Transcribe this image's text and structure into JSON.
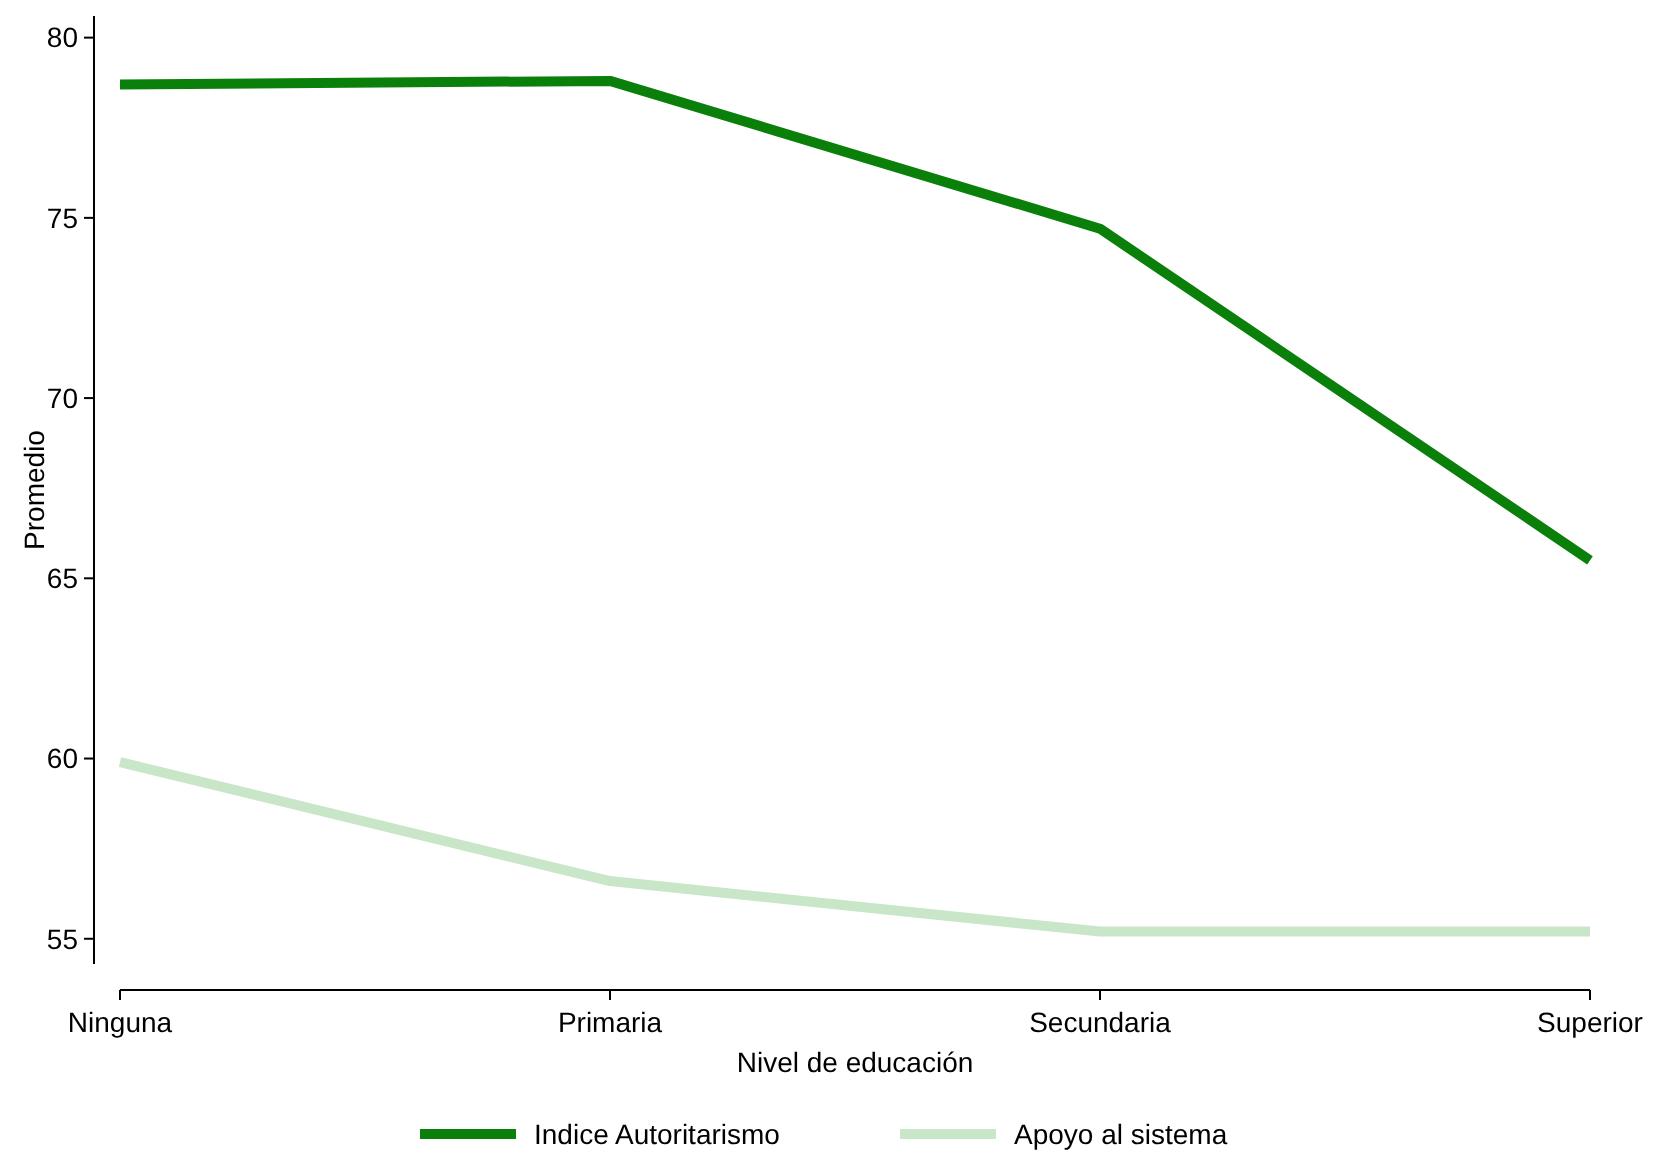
{
  "chart_data": {
    "type": "line",
    "xlabel": "Nivel de educación",
    "ylabel": "Promedio",
    "categories": [
      "Ninguna",
      "Primaria",
      "Secundaria",
      "Superior"
    ],
    "series": [
      {
        "name": "Indice Autoritarismo",
        "color": "#0a7f0a",
        "values": [
          78.7,
          78.8,
          74.7,
          65.5
        ]
      },
      {
        "name": "Apoyo al sistema",
        "color": "#c9e6c9",
        "values": [
          59.9,
          56.6,
          55.2,
          55.2
        ]
      }
    ],
    "ylim": [
      54.3,
      80.6
    ],
    "yticks": [
      55,
      60,
      65,
      70,
      75,
      80
    ],
    "grid": false,
    "legend": "bottom",
    "line_style": "solid",
    "marker": "none"
  }
}
